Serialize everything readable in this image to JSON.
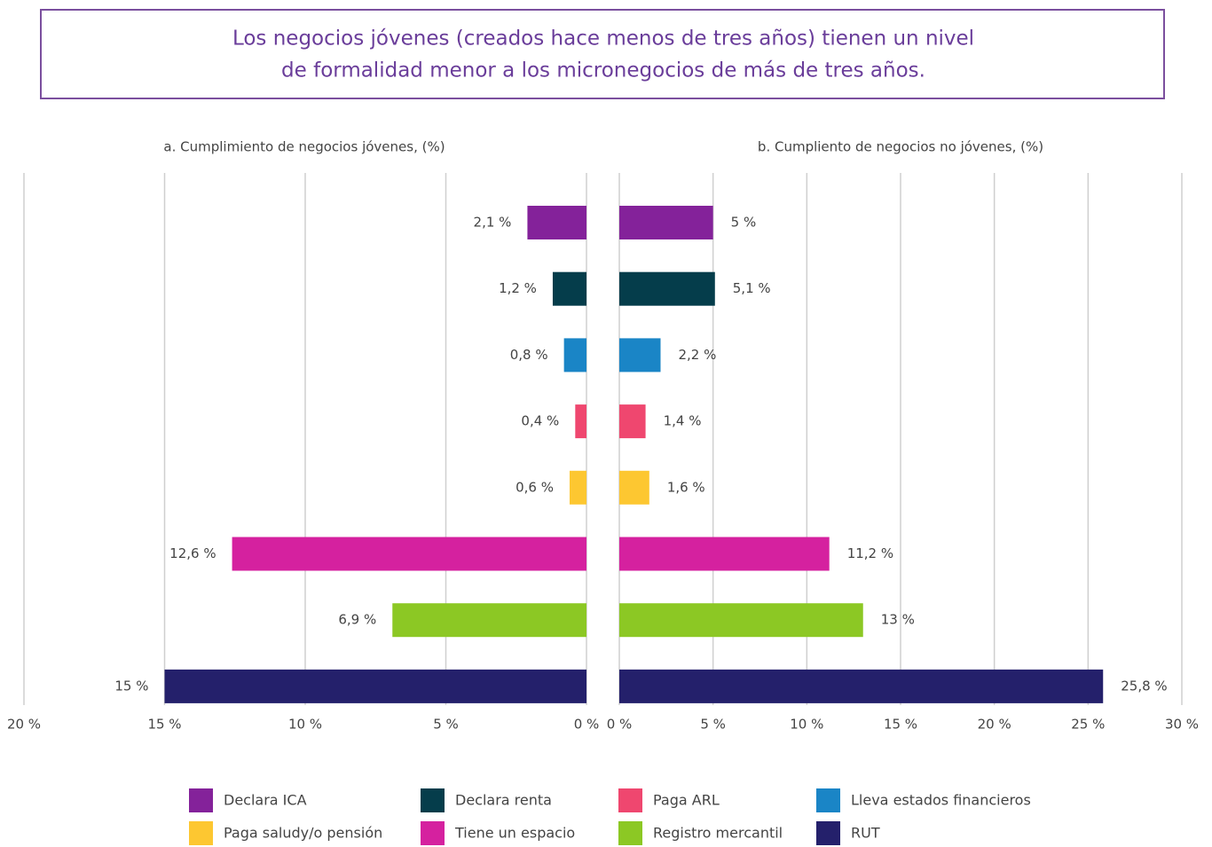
{
  "title": [
    "Los negocios jóvenes (creados hace menos de tres años) tienen un nivel",
    "de formalidad menor a los micronegocios de más de tres años."
  ],
  "legend": [
    {
      "name": "Declara ICA",
      "color": "#84229a"
    },
    {
      "name": "Declara renta",
      "color": "#053d4b"
    },
    {
      "name": "Lleva estados financieros",
      "color": "#1a85c6"
    },
    {
      "name": "Paga ARL",
      "color": "#ef476f"
    },
    {
      "name": "Paga saludy/o pensión",
      "color": "#fdc731"
    },
    {
      "name": "Tiene un espacio",
      "color": "#d5219f"
    },
    {
      "name": "Registro mercantil",
      "color": "#8cc824"
    },
    {
      "name": "RUT",
      "color": "#24206b"
    }
  ],
  "chart_data": [
    {
      "type": "bar",
      "orientation": "horizontal",
      "title": "a. Cumplimiento de negocios jóvenes, (%)",
      "values": [
        2.1,
        1.2,
        0.8,
        0.4,
        0.6,
        12.6,
        6.9,
        15
      ],
      "value_labels": [
        "2,1 %",
        "1,2 %",
        "0,8 %",
        "0,4 %",
        "0,6 %",
        "12,6 %",
        "6,9 %",
        "15 %"
      ],
      "xlim": [
        20,
        0
      ],
      "xticks": [
        {
          "value": 20,
          "label": "20 %"
        },
        {
          "value": 15,
          "label": "15 %"
        },
        {
          "value": 10,
          "label": "10 %"
        },
        {
          "value": 5,
          "label": "5 %"
        },
        {
          "value": 0,
          "label": "0 %"
        }
      ],
      "grid": true
    },
    {
      "type": "bar",
      "orientation": "horizontal",
      "title": "b. Cumpliento de negocios no jóvenes, (%)",
      "values": [
        5,
        5.1,
        2.2,
        1.4,
        1.6,
        11.2,
        13,
        25.8
      ],
      "value_labels": [
        "5 %",
        "5,1 %",
        "2,2 %",
        "1,4 %",
        "1,6 %",
        "11,2 %",
        "13 %",
        "25,8 %"
      ],
      "xlim": [
        0,
        30
      ],
      "xticks": [
        {
          "value": 0,
          "label": "0 %"
        },
        {
          "value": 5,
          "label": "5 %"
        },
        {
          "value": 10,
          "label": "10 %"
        },
        {
          "value": 15,
          "label": "15 %"
        },
        {
          "value": 20,
          "label": "20 %"
        },
        {
          "value": 25,
          "label": "25 %"
        },
        {
          "value": 30,
          "label": "30 %"
        }
      ],
      "grid": true
    }
  ]
}
